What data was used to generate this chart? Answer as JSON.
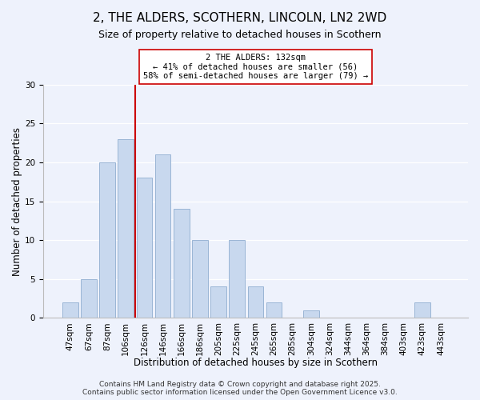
{
  "title": "2, THE ALDERS, SCOTHERN, LINCOLN, LN2 2WD",
  "subtitle": "Size of property relative to detached houses in Scothern",
  "xlabel": "Distribution of detached houses by size in Scothern",
  "ylabel": "Number of detached properties",
  "bar_labels": [
    "47sqm",
    "67sqm",
    "87sqm",
    "106sqm",
    "126sqm",
    "146sqm",
    "166sqm",
    "186sqm",
    "205sqm",
    "225sqm",
    "245sqm",
    "265sqm",
    "285sqm",
    "304sqm",
    "324sqm",
    "344sqm",
    "364sqm",
    "384sqm",
    "403sqm",
    "423sqm",
    "443sqm"
  ],
  "bar_values": [
    2,
    5,
    20,
    23,
    18,
    21,
    14,
    10,
    4,
    10,
    4,
    2,
    0,
    1,
    0,
    0,
    0,
    0,
    0,
    2,
    0
  ],
  "bar_color": "#c8d8ee",
  "bar_edge_color": "#9ab5d5",
  "vline_x_idx": 3.5,
  "vline_color": "#cc0000",
  "annotation_title": "2 THE ALDERS: 132sqm",
  "annotation_line1": "← 41% of detached houses are smaller (56)",
  "annotation_line2": "58% of semi-detached houses are larger (79) →",
  "annotation_box_color": "#ffffff",
  "annotation_box_edge": "#cc0000",
  "ylim": [
    0,
    30
  ],
  "yticks": [
    0,
    5,
    10,
    15,
    20,
    25,
    30
  ],
  "background_color": "#eef2fc",
  "grid_color": "#ffffff",
  "footer_line1": "Contains HM Land Registry data © Crown copyright and database right 2025.",
  "footer_line2": "Contains public sector information licensed under the Open Government Licence v3.0.",
  "title_fontsize": 11,
  "subtitle_fontsize": 9,
  "xlabel_fontsize": 8.5,
  "ylabel_fontsize": 8.5,
  "footer_fontsize": 6.5,
  "tick_fontsize": 7.5,
  "annot_fontsize": 7.5
}
